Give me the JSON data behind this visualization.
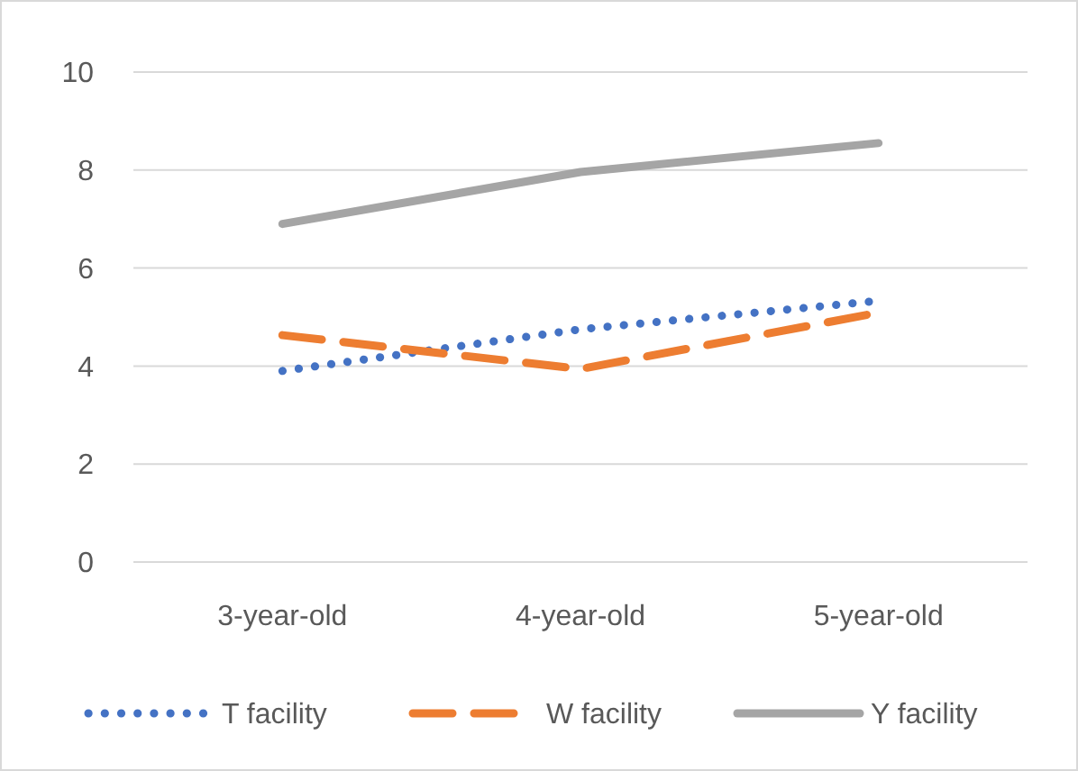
{
  "chart_data": {
    "type": "line",
    "categories": [
      "3-year-old",
      "4-year-old",
      "5-year-old"
    ],
    "series": [
      {
        "name": "T facility",
        "color": "#4472c4",
        "line_style": "dotted",
        "values": [
          3.9,
          4.75,
          5.33
        ]
      },
      {
        "name": "W facility",
        "color": "#ed7d31",
        "line_style": "dashed",
        "values": [
          4.63,
          3.94,
          5.09
        ]
      },
      {
        "name": "Y facility",
        "color": "#a5a5a5",
        "line_style": "solid",
        "values": [
          6.9,
          7.96,
          8.55
        ]
      }
    ],
    "ylim": [
      0,
      10
    ],
    "yticks": [
      0,
      2,
      4,
      6,
      8,
      10
    ],
    "grid": "y",
    "legend": "bottom",
    "marker": "none"
  }
}
